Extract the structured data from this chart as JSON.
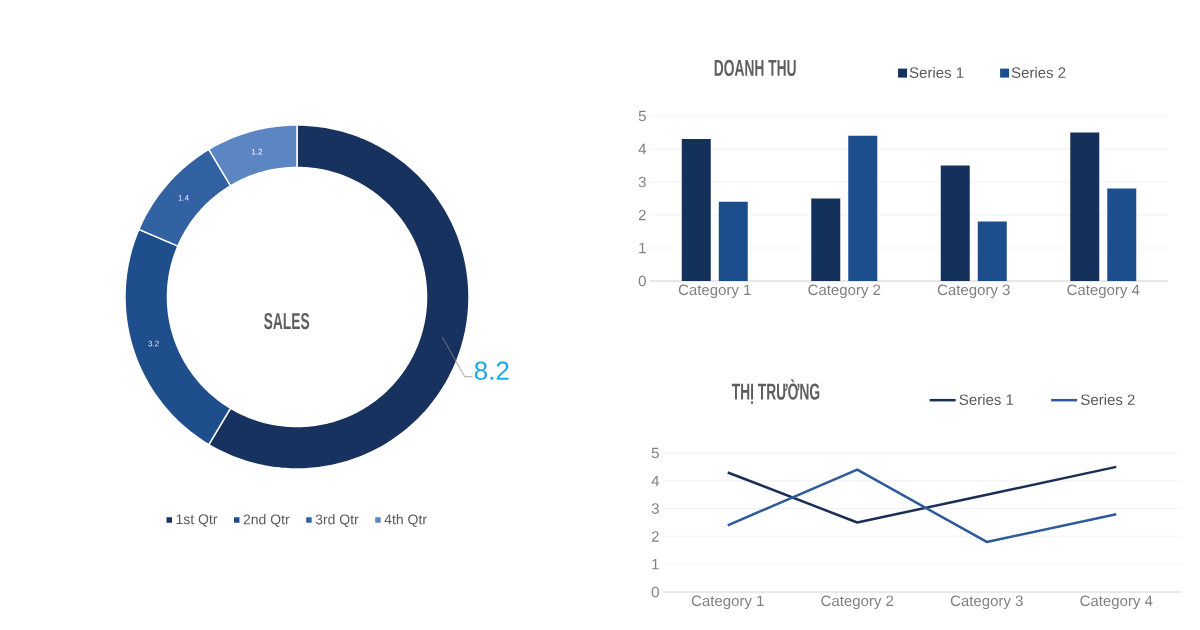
{
  "chart_data": [
    {
      "type": "donut",
      "title": "SALES",
      "categories": [
        "1st Qtr",
        "2nd Qtr",
        "3rd Qtr",
        "4th Qtr"
      ],
      "values": [
        8.2,
        3.2,
        1.4,
        1.2
      ],
      "colors": [
        "#17325e",
        "#1f4e8c",
        "#3362a2",
        "#5b85c3"
      ],
      "data_labels": true,
      "legend": "bottom"
    },
    {
      "type": "bar",
      "title": "DOANH THU",
      "categories": [
        "Category 1",
        "Category 2",
        "Category 3",
        "Category 4"
      ],
      "series": [
        {
          "name": "Series 1",
          "color": "#14315c",
          "values": [
            4.3,
            2.5,
            3.5,
            4.5
          ]
        },
        {
          "name": "Series 2",
          "color": "#1c4e8e",
          "values": [
            2.4,
            4.4,
            1.8,
            2.8
          ]
        }
      ],
      "ylim": [
        0,
        5
      ],
      "yticks": [
        0,
        1,
        2,
        3,
        4,
        5
      ],
      "grid": "y",
      "legend": "top"
    },
    {
      "type": "line",
      "title": "THỊ TRƯỜNG",
      "categories": [
        "Category 1",
        "Category 2",
        "Category 3",
        "Category 4"
      ],
      "series": [
        {
          "name": "Series 1",
          "color": "#1b2f56",
          "values": [
            4.3,
            2.5,
            3.5,
            4.5
          ]
        },
        {
          "name": "Series 2",
          "color": "#2e5a9c",
          "values": [
            2.4,
            4.4,
            1.8,
            2.8
          ]
        }
      ],
      "ylim": [
        0,
        5
      ],
      "yticks": [
        0,
        1,
        2,
        3,
        4,
        5
      ],
      "grid": "y",
      "legend": "top"
    }
  ]
}
